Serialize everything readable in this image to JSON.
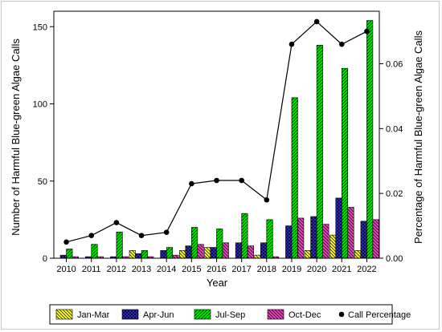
{
  "chart_data": {
    "type": "bar",
    "title": "",
    "xlabel": "Year",
    "ylabel": "Number of Harmful Blue-green Algae Calls",
    "y2label": "Percentage of Harmful Blue-green Algae Calls",
    "categories": [
      "2010",
      "2011",
      "2012",
      "2013",
      "2014",
      "2015",
      "2016",
      "2017",
      "2018",
      "2019",
      "2020",
      "2021",
      "2022"
    ],
    "ylim": [
      0,
      160
    ],
    "yticks": [
      0,
      50,
      100,
      150
    ],
    "y2lim": [
      0,
      0.0762
    ],
    "y2ticks": [
      0.0,
      0.02,
      0.04,
      0.06
    ],
    "y2tick_labels": [
      "0.00",
      "0.02",
      "0.04",
      "0.06"
    ],
    "grid": false,
    "legend_position": "bottom",
    "series": [
      {
        "name": "Jan-Mar",
        "kind": "bar",
        "color": "#ffff00",
        "pattern": "hatch-left",
        "values": [
          0,
          0,
          0,
          5,
          0,
          5,
          7,
          0,
          2,
          0,
          5,
          15,
          5
        ]
      },
      {
        "name": "Apr-Jun",
        "kind": "bar",
        "color": "#3333cc",
        "pattern": "crosshatch",
        "values": [
          2,
          1,
          1,
          3,
          5,
          8,
          7,
          10,
          10,
          21,
          27,
          39,
          24
        ]
      },
      {
        "name": "Jul-Sep",
        "kind": "bar",
        "color": "#00e000",
        "pattern": "hatch-right",
        "values": [
          6,
          9,
          17,
          5,
          7,
          20,
          19,
          29,
          25,
          104,
          138,
          123,
          154
        ]
      },
      {
        "name": "Oct-Dec",
        "kind": "bar",
        "color": "#ff33cc",
        "pattern": "hatch-left",
        "values": [
          1,
          1,
          1,
          1,
          2,
          9,
          10,
          8,
          1,
          26,
          22,
          33,
          25
        ]
      },
      {
        "name": "Call Percentage",
        "kind": "line",
        "axis": "right",
        "color": "#000000",
        "values": [
          0.005,
          0.007,
          0.011,
          0.007,
          0.008,
          0.023,
          0.024,
          0.024,
          0.018,
          0.066,
          0.073,
          0.066,
          0.07
        ]
      }
    ]
  }
}
